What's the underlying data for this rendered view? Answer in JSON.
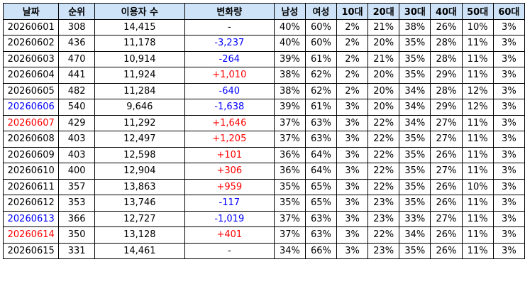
{
  "colors": {
    "header_bg": "#cfe3f8",
    "border": "#000000",
    "text": "#000000",
    "increase": "#ff0000",
    "decrease": "#0000ff",
    "date_saturday": "#0000ff",
    "date_sunday": "#ff0000"
  },
  "table": {
    "columns": [
      {
        "key": "date",
        "label": "날짜"
      },
      {
        "key": "rank",
        "label": "순위"
      },
      {
        "key": "users",
        "label": "이용자 수"
      },
      {
        "key": "change",
        "label": "변화량"
      },
      {
        "key": "male",
        "label": "남성"
      },
      {
        "key": "female",
        "label": "여성"
      },
      {
        "key": "age10",
        "label": "10대"
      },
      {
        "key": "age20",
        "label": "20대"
      },
      {
        "key": "age30",
        "label": "30대"
      },
      {
        "key": "age40",
        "label": "40대"
      },
      {
        "key": "age50",
        "label": "50대"
      },
      {
        "key": "age60",
        "label": "60대"
      }
    ],
    "rows": [
      {
        "date": "20260601",
        "rank": "308",
        "users": "14,415",
        "change": "-",
        "male": "40%",
        "female": "60%",
        "age10": "2%",
        "age20": "21%",
        "age30": "38%",
        "age40": "26%",
        "age50": "10%",
        "age60": "3%",
        "change_dir": "none",
        "date_type": "weekday"
      },
      {
        "date": "20260602",
        "rank": "436",
        "users": "11,178",
        "change": "-3,237",
        "male": "40%",
        "female": "60%",
        "age10": "2%",
        "age20": "20%",
        "age30": "35%",
        "age40": "28%",
        "age50": "11%",
        "age60": "3%",
        "change_dir": "down",
        "date_type": "weekday"
      },
      {
        "date": "20260603",
        "rank": "470",
        "users": "10,914",
        "change": "-264",
        "male": "39%",
        "female": "61%",
        "age10": "2%",
        "age20": "21%",
        "age30": "35%",
        "age40": "28%",
        "age50": "11%",
        "age60": "3%",
        "change_dir": "down",
        "date_type": "weekday"
      },
      {
        "date": "20260604",
        "rank": "441",
        "users": "11,924",
        "change": "+1,010",
        "male": "38%",
        "female": "62%",
        "age10": "2%",
        "age20": "20%",
        "age30": "35%",
        "age40": "29%",
        "age50": "11%",
        "age60": "3%",
        "change_dir": "up",
        "date_type": "weekday"
      },
      {
        "date": "20260605",
        "rank": "482",
        "users": "11,284",
        "change": "-640",
        "male": "38%",
        "female": "62%",
        "age10": "2%",
        "age20": "20%",
        "age30": "34%",
        "age40": "28%",
        "age50": "12%",
        "age60": "3%",
        "change_dir": "down",
        "date_type": "weekday"
      },
      {
        "date": "20260606",
        "rank": "540",
        "users": "9,646",
        "change": "-1,638",
        "male": "39%",
        "female": "61%",
        "age10": "3%",
        "age20": "20%",
        "age30": "34%",
        "age40": "29%",
        "age50": "12%",
        "age60": "3%",
        "change_dir": "down",
        "date_type": "saturday"
      },
      {
        "date": "20260607",
        "rank": "429",
        "users": "11,292",
        "change": "+1,646",
        "male": "37%",
        "female": "63%",
        "age10": "3%",
        "age20": "22%",
        "age30": "34%",
        "age40": "27%",
        "age50": "11%",
        "age60": "3%",
        "change_dir": "up",
        "date_type": "sunday"
      },
      {
        "date": "20260608",
        "rank": "403",
        "users": "12,497",
        "change": "+1,205",
        "male": "37%",
        "female": "63%",
        "age10": "3%",
        "age20": "22%",
        "age30": "35%",
        "age40": "27%",
        "age50": "11%",
        "age60": "3%",
        "change_dir": "up",
        "date_type": "weekday"
      },
      {
        "date": "20260609",
        "rank": "403",
        "users": "12,598",
        "change": "+101",
        "male": "36%",
        "female": "64%",
        "age10": "3%",
        "age20": "22%",
        "age30": "35%",
        "age40": "26%",
        "age50": "11%",
        "age60": "3%",
        "change_dir": "up",
        "date_type": "weekday"
      },
      {
        "date": "20260610",
        "rank": "400",
        "users": "12,904",
        "change": "+306",
        "male": "36%",
        "female": "64%",
        "age10": "3%",
        "age20": "22%",
        "age30": "35%",
        "age40": "27%",
        "age50": "11%",
        "age60": "3%",
        "change_dir": "up",
        "date_type": "weekday"
      },
      {
        "date": "20260611",
        "rank": "357",
        "users": "13,863",
        "change": "+959",
        "male": "35%",
        "female": "65%",
        "age10": "3%",
        "age20": "22%",
        "age30": "35%",
        "age40": "26%",
        "age50": "10%",
        "age60": "3%",
        "change_dir": "up",
        "date_type": "weekday"
      },
      {
        "date": "20260612",
        "rank": "353",
        "users": "13,746",
        "change": "-117",
        "male": "35%",
        "female": "65%",
        "age10": "3%",
        "age20": "23%",
        "age30": "35%",
        "age40": "26%",
        "age50": "11%",
        "age60": "3%",
        "change_dir": "down",
        "date_type": "weekday"
      },
      {
        "date": "20260613",
        "rank": "366",
        "users": "12,727",
        "change": "-1,019",
        "male": "37%",
        "female": "63%",
        "age10": "3%",
        "age20": "23%",
        "age30": "33%",
        "age40": "27%",
        "age50": "11%",
        "age60": "3%",
        "change_dir": "down",
        "date_type": "saturday"
      },
      {
        "date": "20260614",
        "rank": "350",
        "users": "13,128",
        "change": "+401",
        "male": "37%",
        "female": "63%",
        "age10": "3%",
        "age20": "22%",
        "age30": "34%",
        "age40": "26%",
        "age50": "11%",
        "age60": "3%",
        "change_dir": "up",
        "date_type": "sunday"
      },
      {
        "date": "20260615",
        "rank": "331",
        "users": "14,461",
        "change": "-",
        "male": "34%",
        "female": "66%",
        "age10": "3%",
        "age20": "23%",
        "age30": "35%",
        "age40": "26%",
        "age50": "11%",
        "age60": "3%",
        "change_dir": "none",
        "date_type": "weekday"
      }
    ]
  }
}
